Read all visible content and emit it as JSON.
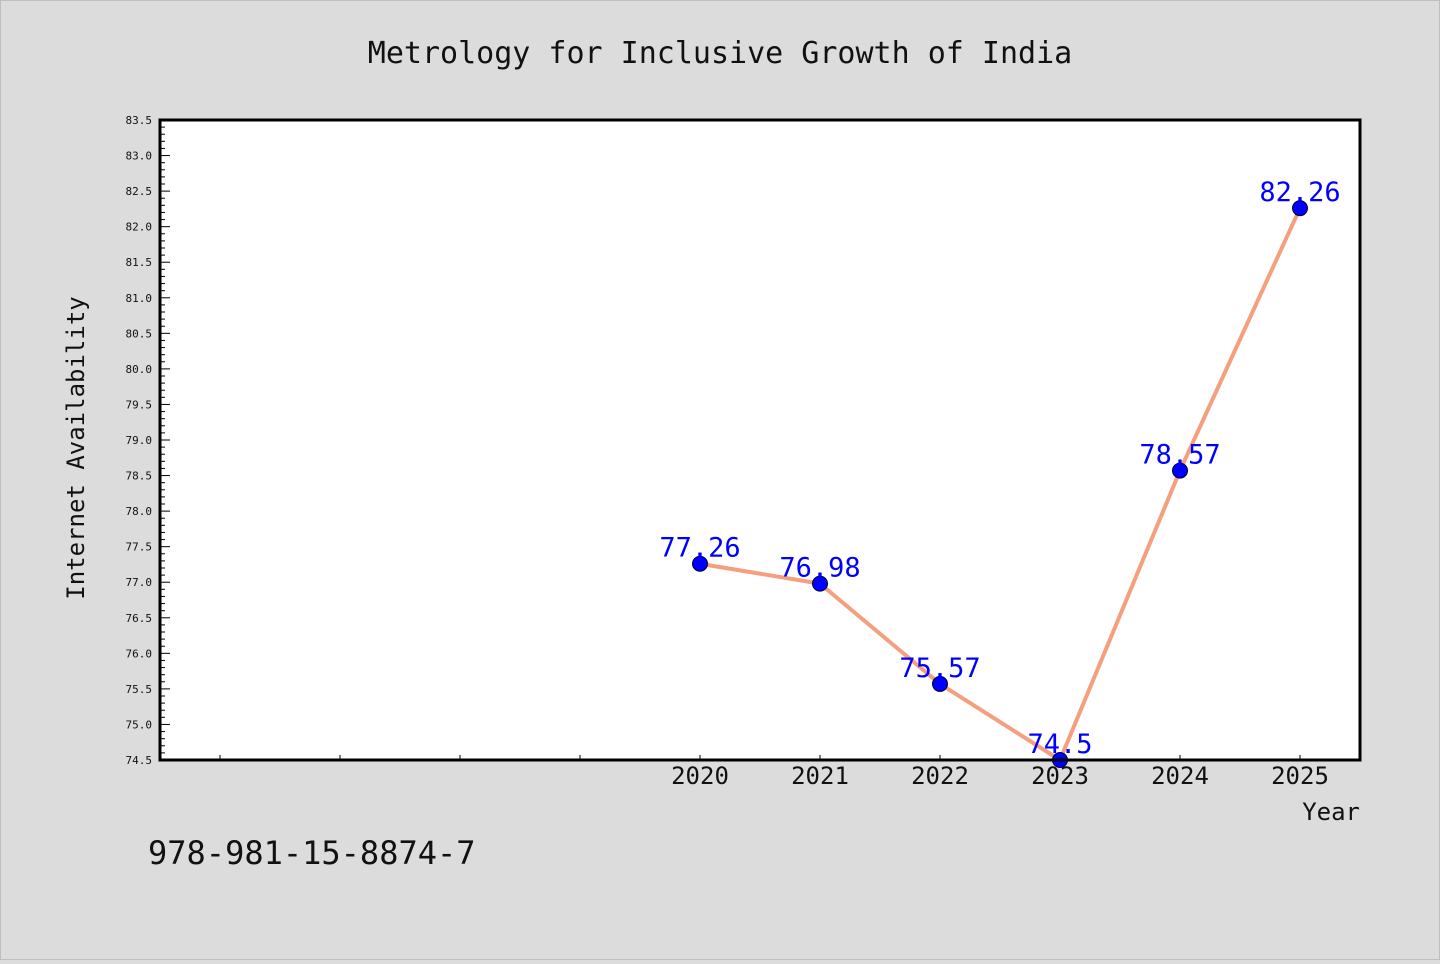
{
  "chart_data": {
    "type": "line",
    "title": "Metrology for Inclusive Growth of India",
    "xlabel": "Year",
    "ylabel": "Internet Availability",
    "x": [
      2020,
      2021,
      2022,
      2023,
      2024,
      2025
    ],
    "x_tick_labels": [
      "2020",
      "2021",
      "2022",
      "2023",
      "2024",
      "2025"
    ],
    "xlim": [
      2015.5,
      2025.5
    ],
    "series": [
      {
        "values": [
          77.26,
          76.98,
          75.57,
          74.5,
          78.57,
          82.26
        ],
        "data_labels": [
          "77.26",
          "76.98",
          "75.57",
          "74.5",
          "78.57",
          "82.26"
        ],
        "line_color": "#f4a07f",
        "marker_color": "#0000ff"
      }
    ],
    "ylim": [
      74.5,
      83.5
    ],
    "y_ticks": [
      74.5,
      75.0,
      75.5,
      76.0,
      76.5,
      77.0,
      77.5,
      78.0,
      78.5,
      79.0,
      79.5,
      80.0,
      80.5,
      81.0,
      81.5,
      82.0,
      82.5,
      83.0,
      83.5
    ],
    "y_tick_labels": [
      "74.5",
      "75.0",
      "75.5",
      "76.0",
      "76.5",
      "77.0",
      "77.5",
      "78.0",
      "78.5",
      "79.0",
      "79.5",
      "80.0",
      "80.5",
      "81.0",
      "81.5",
      "82.0",
      "82.5",
      "83.0",
      "83.5"
    ],
    "grid": false,
    "label_color": "#0000ff",
    "annotation": "978-981-15-8874-7"
  }
}
